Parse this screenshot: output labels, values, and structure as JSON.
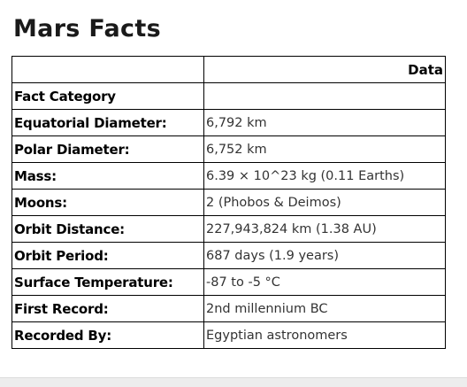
{
  "title": "Mars Facts",
  "table": {
    "headers": [
      "",
      "Data"
    ],
    "rows": [
      {
        "label": "Fact Category",
        "value": ""
      },
      {
        "label": "Equatorial Diameter:",
        "value": "6,792 km"
      },
      {
        "label": "Polar Diameter:",
        "value": "6,752 km"
      },
      {
        "label": "Mass:",
        "value": "6.39 × 10^23 kg (0.11 Earths)"
      },
      {
        "label": "Moons:",
        "value": "2 (Phobos & Deimos)"
      },
      {
        "label": "Orbit Distance:",
        "value": "227,943,824 km (1.38 AU)"
      },
      {
        "label": "Orbit Period:",
        "value": "687 days (1.9 years)"
      },
      {
        "label": "Surface Temperature:",
        "value": "-87 to -5 °C"
      },
      {
        "label": "First Record:",
        "value": "2nd millennium BC"
      },
      {
        "label": "Recorded By:",
        "value": "Egyptian astronomers"
      }
    ]
  }
}
